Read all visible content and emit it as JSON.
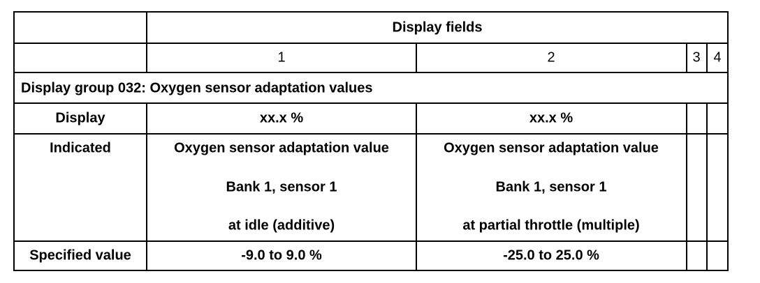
{
  "table": {
    "header": "Display fields",
    "field_numbers": [
      "1",
      "2",
      "3",
      "4"
    ],
    "group_title": "Display group 032: Oxygen sensor adaptation values",
    "rows": [
      [
        "Display",
        "xx.x %",
        "xx.x %"
      ],
      [
        "Indicated",
        [
          "Oxygen sensor adaptation value",
          "Bank 1, sensor 1",
          "at idle (additive)"
        ],
        [
          "Oxygen sensor adaptation value",
          "Bank 1, sensor 1",
          "at partial throttle (multiple)"
        ]
      ],
      [
        "Specified value",
        "-9.0 to 9.0 %",
        "-25.0 to 25.0 %"
      ]
    ]
  }
}
